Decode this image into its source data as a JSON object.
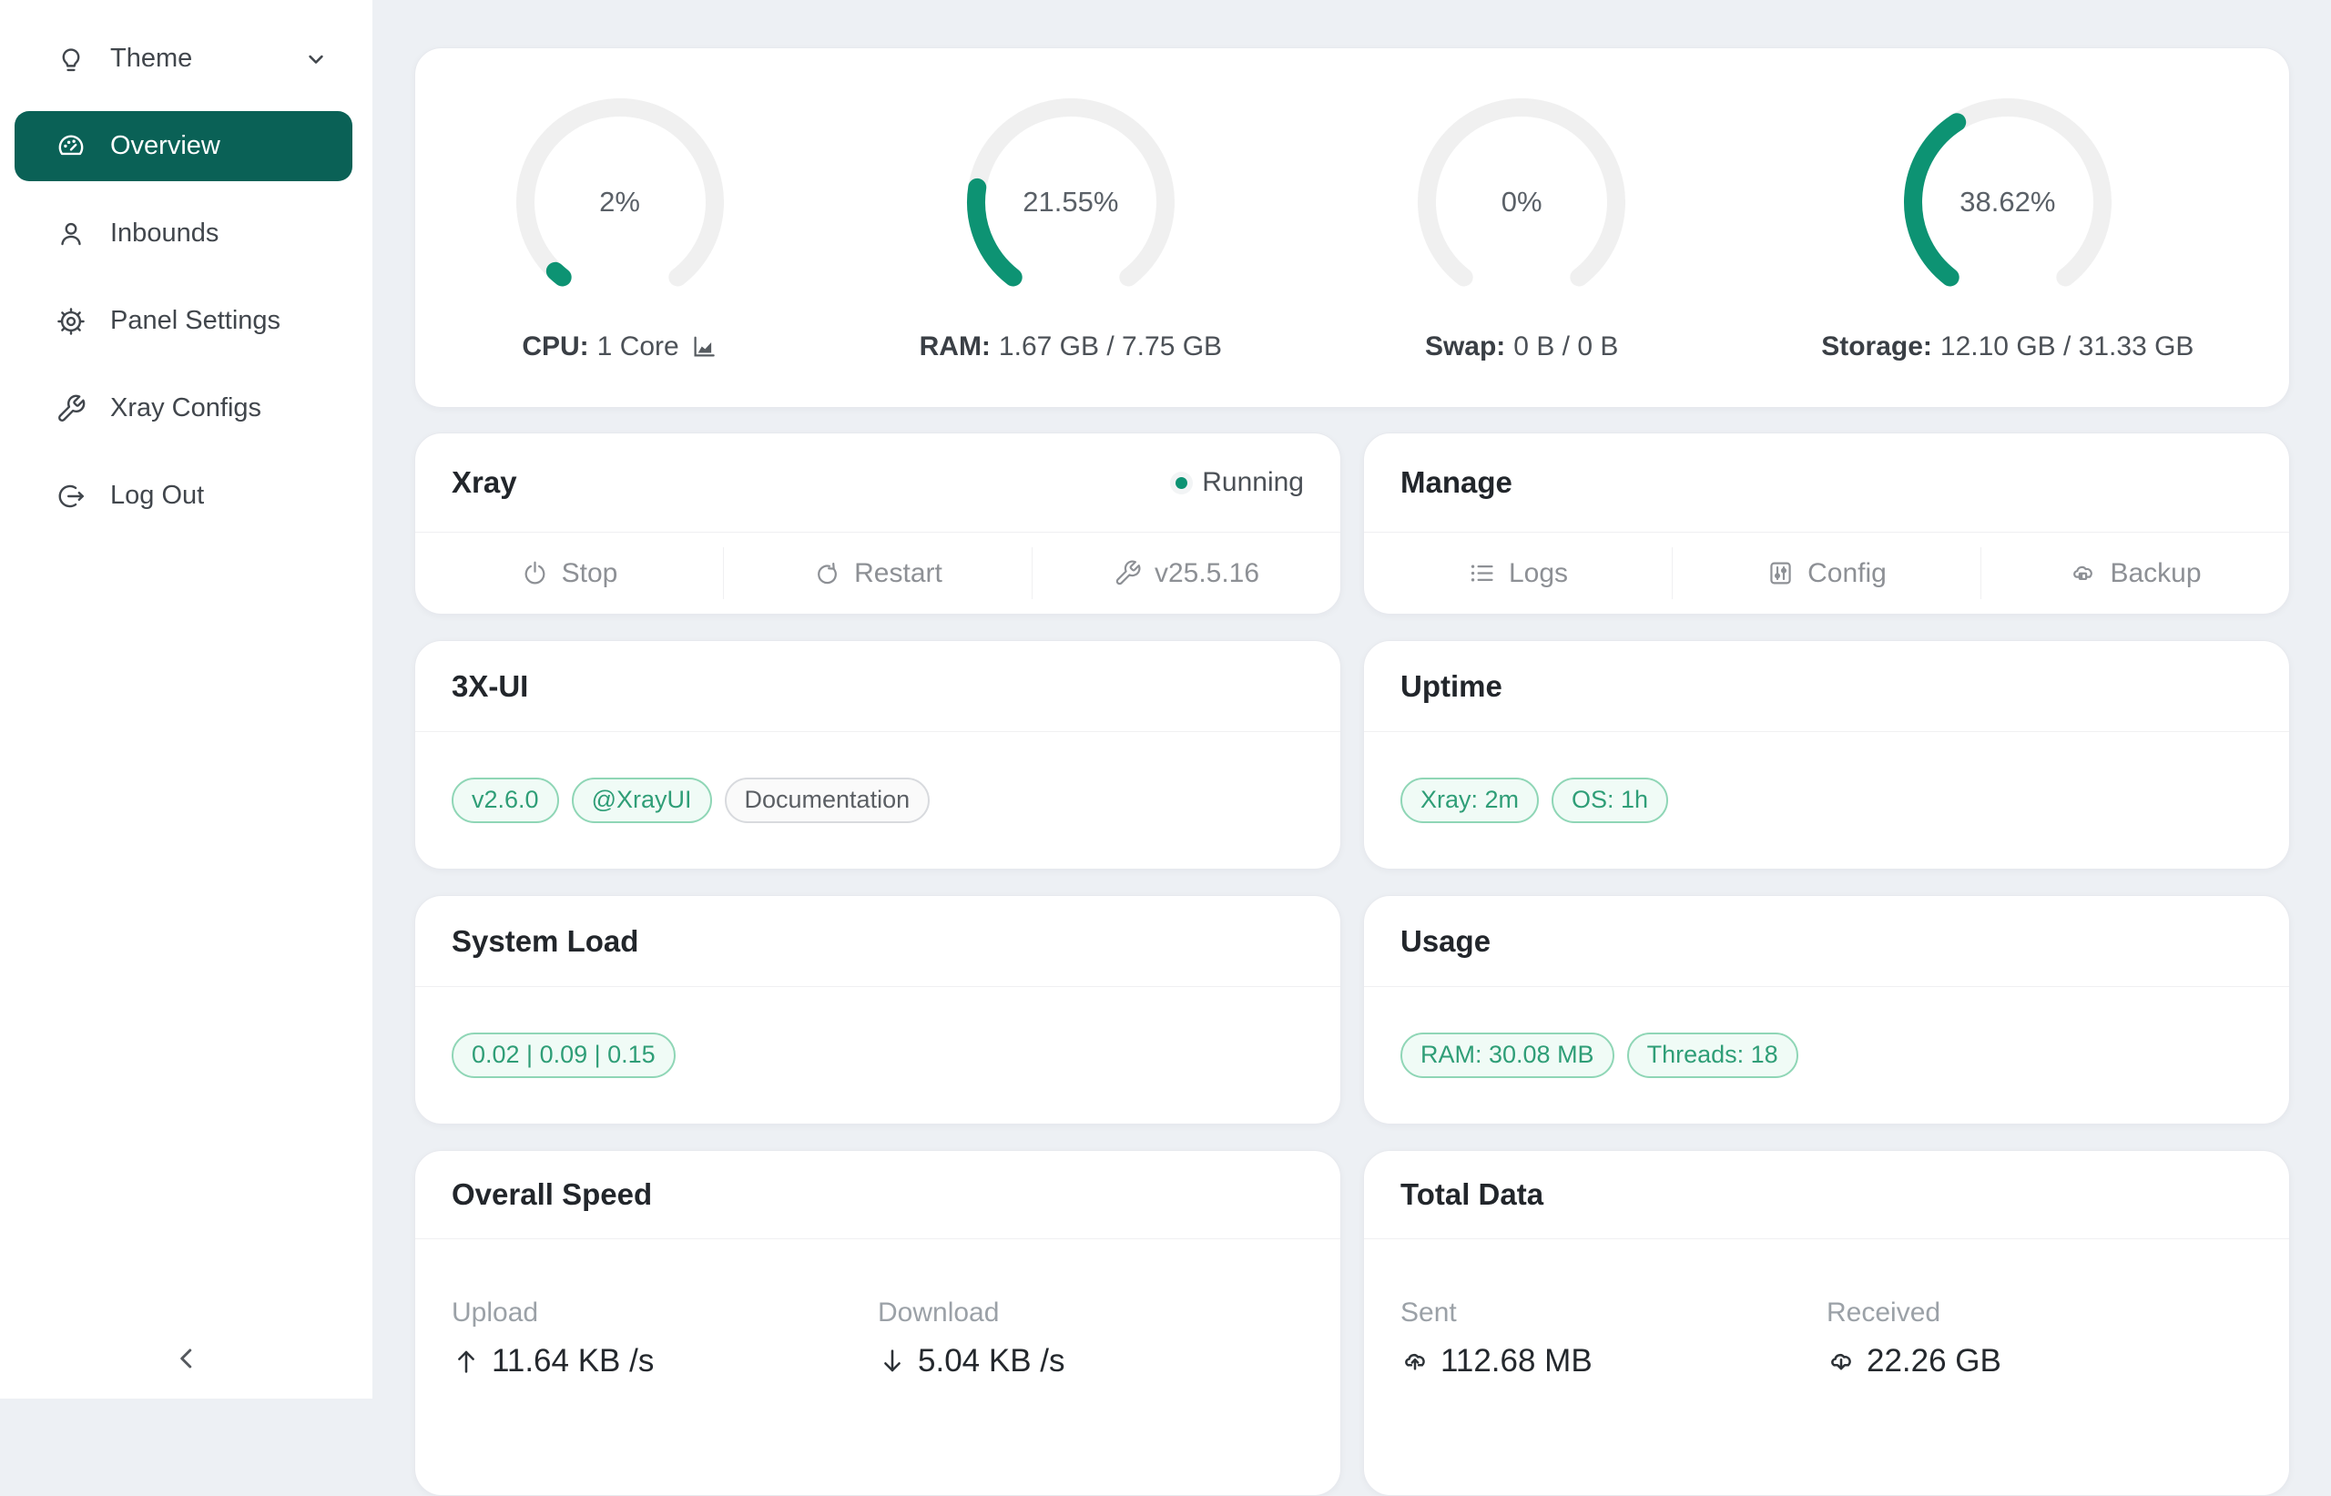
{
  "colors": {
    "accent_teal": "#0d9373",
    "sidebar_active_bg": "#0a6156",
    "page_bg": "#edf0f4",
    "gauge_track": "#f0f0f0",
    "tag_green_text": "#2f9e77",
    "tag_green_border": "#8fd6b6",
    "tag_green_bg": "#f0fbf6",
    "tag_gray_text": "#5b5f64",
    "tag_gray_border": "#d8dade",
    "tag_gray_bg": "#fafafa"
  },
  "sidebar": {
    "items": [
      {
        "label": "Theme",
        "icon": "lightbulb-icon",
        "trailing_icon": "chevron-down-icon"
      },
      {
        "label": "Overview",
        "icon": "dashboard-icon",
        "active": true
      },
      {
        "label": "Inbounds",
        "icon": "user-icon"
      },
      {
        "label": "Panel Settings",
        "icon": "gear-icon"
      },
      {
        "label": "Xray Configs",
        "icon": "wrench-icon"
      },
      {
        "label": "Log Out",
        "icon": "logout-icon"
      }
    ],
    "collapse_icon": "chevron-left-icon"
  },
  "gauges": [
    {
      "percent": 2,
      "percent_label": "2%",
      "label_bold": "CPU:",
      "label_rest": "1 Core",
      "chart_icon": "area-chart-icon"
    },
    {
      "percent": 21.55,
      "percent_label": "21.55%",
      "label_bold": "RAM:",
      "label_rest": "1.67 GB / 7.75 GB"
    },
    {
      "percent": 0,
      "percent_label": "0%",
      "label_bold": "Swap:",
      "label_rest": "0 B / 0 B"
    },
    {
      "percent": 38.62,
      "percent_label": "38.62%",
      "label_bold": "Storage:",
      "label_rest": "12.10 GB / 31.33 GB"
    }
  ],
  "xray": {
    "title": "Xray",
    "status": "Running",
    "actions": [
      {
        "label": "Stop",
        "icon": "power-icon"
      },
      {
        "label": "Restart",
        "icon": "restart-icon"
      },
      {
        "label": "v25.5.16",
        "icon": "wrench-icon"
      }
    ]
  },
  "manage": {
    "title": "Manage",
    "actions": [
      {
        "label": "Logs",
        "icon": "list-icon"
      },
      {
        "label": "Config",
        "icon": "sliders-icon"
      },
      {
        "label": "Backup",
        "icon": "cloud-server-icon"
      }
    ]
  },
  "xui": {
    "title": "3X-UI",
    "tags": [
      {
        "label": "v2.6.0",
        "variant": "green"
      },
      {
        "label": "@XrayUI",
        "variant": "green"
      },
      {
        "label": "Documentation",
        "variant": "gray"
      }
    ]
  },
  "uptime": {
    "title": "Uptime",
    "tags": [
      {
        "label": "Xray: 2m",
        "variant": "green"
      },
      {
        "label": "OS: 1h",
        "variant": "green"
      }
    ]
  },
  "system_load": {
    "title": "System Load",
    "tags": [
      {
        "label": "0.02 | 0.09 | 0.15",
        "variant": "green"
      }
    ]
  },
  "usage": {
    "title": "Usage",
    "tags": [
      {
        "label": "RAM: 30.08 MB",
        "variant": "green"
      },
      {
        "label": "Threads: 18",
        "variant": "green"
      }
    ]
  },
  "overall_speed": {
    "title": "Overall Speed",
    "stats": [
      {
        "label": "Upload",
        "icon": "arrow-up-icon",
        "value": "11.64 KB /s"
      },
      {
        "label": "Download",
        "icon": "arrow-down-icon",
        "value": "5.04 KB /s"
      }
    ]
  },
  "total_data": {
    "title": "Total Data",
    "stats": [
      {
        "label": "Sent",
        "icon": "cloud-upload-icon",
        "value": "112.68 MB"
      },
      {
        "label": "Received",
        "icon": "cloud-download-icon",
        "value": "22.26 GB"
      }
    ]
  }
}
